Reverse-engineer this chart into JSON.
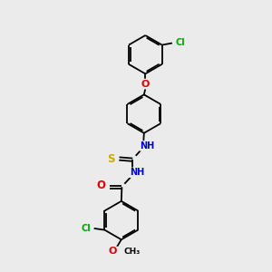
{
  "background_color": "#ebebeb",
  "bond_color": "#000000",
  "bond_width": 1.3,
  "atom_colors": {
    "C": "#000000",
    "N": "#0000cc",
    "O": "#dd0000",
    "S": "#ccaa00",
    "Cl": "#00aa00"
  },
  "font_size": 7.0,
  "dbo": 0.055,
  "ring_r": 0.72,
  "figsize": [
    3.0,
    3.0
  ],
  "dpi": 100,
  "xlim": [
    0,
    10
  ],
  "ylim": [
    0,
    10
  ]
}
